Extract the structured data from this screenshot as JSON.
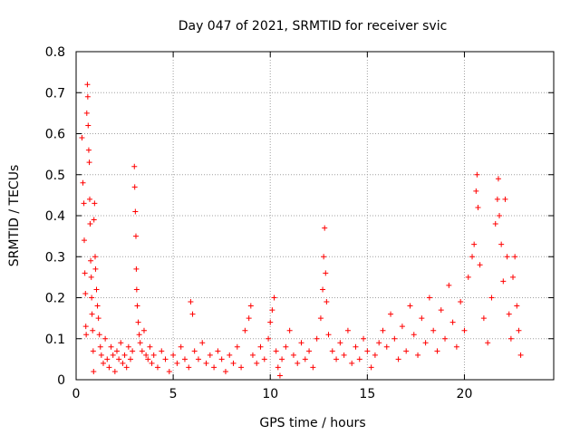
{
  "chart_data": {
    "type": "scatter",
    "title": "Day 047 of 2021, SRMTID for receiver svic",
    "xlabel": "GPS time / hours",
    "ylabel": "SRMTID / TECUs",
    "xlim": [
      0,
      24.6
    ],
    "ylim": [
      0,
      0.8
    ],
    "x_ticks": [
      0,
      5,
      10,
      15,
      20
    ],
    "x_tick_labels": [
      "0",
      "5",
      "10",
      "15",
      "20"
    ],
    "y_ticks": [
      0,
      0.1,
      0.2,
      0.3,
      0.4,
      0.5,
      0.6,
      0.7,
      0.8
    ],
    "y_tick_labels": [
      "0",
      "0.1",
      "0.2",
      "0.3",
      "0.4",
      "0.5",
      "0.6",
      "0.7",
      "0.8"
    ],
    "grid": true,
    "marker": "+",
    "color": "#ff0000",
    "series": [
      {
        "name": "SRMTID",
        "points": [
          [
            0.3,
            0.59
          ],
          [
            0.35,
            0.48
          ],
          [
            0.4,
            0.43
          ],
          [
            0.42,
            0.34
          ],
          [
            0.45,
            0.26
          ],
          [
            0.48,
            0.21
          ],
          [
            0.5,
            0.13
          ],
          [
            0.52,
            0.11
          ],
          [
            0.55,
            0.65
          ],
          [
            0.58,
            0.72
          ],
          [
            0.6,
            0.69
          ],
          [
            0.62,
            0.62
          ],
          [
            0.65,
            0.56
          ],
          [
            0.68,
            0.53
          ],
          [
            0.7,
            0.44
          ],
          [
            0.72,
            0.38
          ],
          [
            0.75,
            0.29
          ],
          [
            0.78,
            0.25
          ],
          [
            0.8,
            0.2
          ],
          [
            0.82,
            0.16
          ],
          [
            0.85,
            0.12
          ],
          [
            0.88,
            0.07
          ],
          [
            0.9,
            0.02
          ],
          [
            0.92,
            0.39
          ],
          [
            0.95,
            0.43
          ],
          [
            0.98,
            0.3
          ],
          [
            1.0,
            0.27
          ],
          [
            1.05,
            0.22
          ],
          [
            1.1,
            0.18
          ],
          [
            1.15,
            0.15
          ],
          [
            1.2,
            0.11
          ],
          [
            1.25,
            0.08
          ],
          [
            1.3,
            0.06
          ],
          [
            1.4,
            0.04
          ],
          [
            1.5,
            0.1
          ],
          [
            1.6,
            0.05
          ],
          [
            1.7,
            0.03
          ],
          [
            1.8,
            0.08
          ],
          [
            1.9,
            0.06
          ],
          [
            2.0,
            0.02
          ],
          [
            2.1,
            0.07
          ],
          [
            2.2,
            0.05
          ],
          [
            2.3,
            0.09
          ],
          [
            2.4,
            0.04
          ],
          [
            2.5,
            0.06
          ],
          [
            2.6,
            0.03
          ],
          [
            2.7,
            0.08
          ],
          [
            2.8,
            0.05
          ],
          [
            2.9,
            0.07
          ],
          [
            3.0,
            0.52
          ],
          [
            3.02,
            0.47
          ],
          [
            3.05,
            0.41
          ],
          [
            3.08,
            0.35
          ],
          [
            3.1,
            0.27
          ],
          [
            3.12,
            0.22
          ],
          [
            3.15,
            0.18
          ],
          [
            3.2,
            0.14
          ],
          [
            3.25,
            0.11
          ],
          [
            3.3,
            0.09
          ],
          [
            3.4,
            0.07
          ],
          [
            3.5,
            0.12
          ],
          [
            3.6,
            0.06
          ],
          [
            3.7,
            0.05
          ],
          [
            3.8,
            0.08
          ],
          [
            3.9,
            0.04
          ],
          [
            4.0,
            0.06
          ],
          [
            4.2,
            0.03
          ],
          [
            4.4,
            0.07
          ],
          [
            4.6,
            0.05
          ],
          [
            4.8,
            0.02
          ],
          [
            5.0,
            0.06
          ],
          [
            5.2,
            0.04
          ],
          [
            5.4,
            0.08
          ],
          [
            5.6,
            0.05
          ],
          [
            5.8,
            0.03
          ],
          [
            5.9,
            0.19
          ],
          [
            6.0,
            0.16
          ],
          [
            6.1,
            0.07
          ],
          [
            6.3,
            0.05
          ],
          [
            6.5,
            0.09
          ],
          [
            6.7,
            0.04
          ],
          [
            6.9,
            0.06
          ],
          [
            7.1,
            0.03
          ],
          [
            7.3,
            0.07
          ],
          [
            7.5,
            0.05
          ],
          [
            7.7,
            0.02
          ],
          [
            7.9,
            0.06
          ],
          [
            8.1,
            0.04
          ],
          [
            8.3,
            0.08
          ],
          [
            8.5,
            0.03
          ],
          [
            8.7,
            0.12
          ],
          [
            8.9,
            0.15
          ],
          [
            9.0,
            0.18
          ],
          [
            9.1,
            0.06
          ],
          [
            9.3,
            0.04
          ],
          [
            9.5,
            0.08
          ],
          [
            9.7,
            0.05
          ],
          [
            9.9,
            0.1
          ],
          [
            10.0,
            0.14
          ],
          [
            10.1,
            0.17
          ],
          [
            10.2,
            0.2
          ],
          [
            10.3,
            0.07
          ],
          [
            10.4,
            0.03
          ],
          [
            10.5,
            0.01
          ],
          [
            10.6,
            0.05
          ],
          [
            10.8,
            0.08
          ],
          [
            11.0,
            0.12
          ],
          [
            11.2,
            0.06
          ],
          [
            11.4,
            0.04
          ],
          [
            11.6,
            0.09
          ],
          [
            11.8,
            0.05
          ],
          [
            12.0,
            0.07
          ],
          [
            12.2,
            0.03
          ],
          [
            12.4,
            0.1
          ],
          [
            12.6,
            0.15
          ],
          [
            12.7,
            0.22
          ],
          [
            12.75,
            0.3
          ],
          [
            12.8,
            0.37
          ],
          [
            12.85,
            0.26
          ],
          [
            12.9,
            0.19
          ],
          [
            13.0,
            0.11
          ],
          [
            13.2,
            0.07
          ],
          [
            13.4,
            0.05
          ],
          [
            13.6,
            0.09
          ],
          [
            13.8,
            0.06
          ],
          [
            14.0,
            0.12
          ],
          [
            14.2,
            0.04
          ],
          [
            14.4,
            0.08
          ],
          [
            14.6,
            0.05
          ],
          [
            14.8,
            0.1
          ],
          [
            15.0,
            0.07
          ],
          [
            15.2,
            0.03
          ],
          [
            15.4,
            0.06
          ],
          [
            15.6,
            0.09
          ],
          [
            15.8,
            0.12
          ],
          [
            16.0,
            0.08
          ],
          [
            16.2,
            0.16
          ],
          [
            16.4,
            0.1
          ],
          [
            16.6,
            0.05
          ],
          [
            16.8,
            0.13
          ],
          [
            17.0,
            0.07
          ],
          [
            17.2,
            0.18
          ],
          [
            17.4,
            0.11
          ],
          [
            17.6,
            0.06
          ],
          [
            17.8,
            0.15
          ],
          [
            18.0,
            0.09
          ],
          [
            18.2,
            0.2
          ],
          [
            18.4,
            0.12
          ],
          [
            18.6,
            0.07
          ],
          [
            18.8,
            0.17
          ],
          [
            19.0,
            0.1
          ],
          [
            19.2,
            0.23
          ],
          [
            19.4,
            0.14
          ],
          [
            19.6,
            0.08
          ],
          [
            19.8,
            0.19
          ],
          [
            20.0,
            0.12
          ],
          [
            20.2,
            0.25
          ],
          [
            20.4,
            0.3
          ],
          [
            20.5,
            0.33
          ],
          [
            20.6,
            0.46
          ],
          [
            20.65,
            0.5
          ],
          [
            20.7,
            0.42
          ],
          [
            20.8,
            0.28
          ],
          [
            21.0,
            0.15
          ],
          [
            21.2,
            0.09
          ],
          [
            21.4,
            0.2
          ],
          [
            21.6,
            0.38
          ],
          [
            21.7,
            0.44
          ],
          [
            21.75,
            0.49
          ],
          [
            21.8,
            0.4
          ],
          [
            21.9,
            0.33
          ],
          [
            22.0,
            0.24
          ],
          [
            22.1,
            0.44
          ],
          [
            22.2,
            0.3
          ],
          [
            22.3,
            0.16
          ],
          [
            22.4,
            0.1
          ],
          [
            22.5,
            0.25
          ],
          [
            22.6,
            0.3
          ],
          [
            22.7,
            0.18
          ],
          [
            22.8,
            0.12
          ],
          [
            22.9,
            0.06
          ]
        ]
      }
    ]
  }
}
